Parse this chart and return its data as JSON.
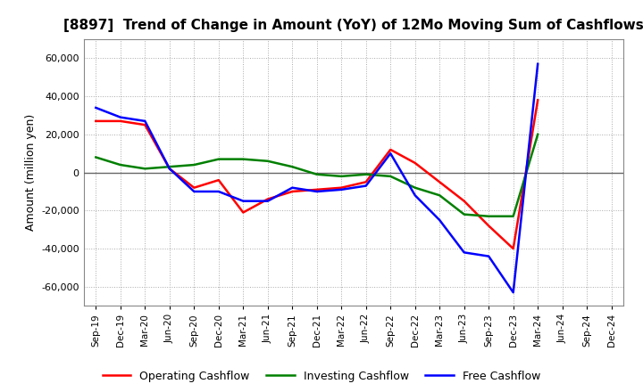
{
  "title": "[8897]  Trend of Change in Amount (YoY) of 12Mo Moving Sum of Cashflows",
  "ylabel": "Amount (million yen)",
  "x_labels": [
    "Sep-19",
    "Dec-19",
    "Mar-20",
    "Jun-20",
    "Sep-20",
    "Dec-20",
    "Mar-21",
    "Jun-21",
    "Sep-21",
    "Dec-21",
    "Mar-22",
    "Jun-22",
    "Sep-22",
    "Dec-22",
    "Mar-23",
    "Jun-23",
    "Sep-23",
    "Dec-23",
    "Mar-24",
    "Jun-24",
    "Sep-24",
    "Dec-24"
  ],
  "operating_cashflow": [
    27000,
    27000,
    25000,
    2000,
    -8000,
    -4000,
    -21000,
    -14000,
    -10000,
    -9000,
    -8000,
    -5000,
    12000,
    5000,
    -5000,
    -15000,
    -28000,
    -40000,
    38000,
    null,
    null,
    null
  ],
  "investing_cashflow": [
    8000,
    4000,
    2000,
    3000,
    4000,
    7000,
    7000,
    6000,
    3000,
    -1000,
    -2000,
    -1000,
    -2000,
    -8000,
    -12000,
    -22000,
    -23000,
    -23000,
    20000,
    null,
    null,
    null
  ],
  "free_cashflow": [
    34000,
    29000,
    27000,
    2000,
    -10000,
    -10000,
    -15000,
    -15000,
    -8000,
    -10000,
    -9000,
    -7000,
    10000,
    -12000,
    -25000,
    -42000,
    -44000,
    -63000,
    57000,
    null,
    null,
    null
  ],
  "operating_color": "#ff0000",
  "investing_color": "#008000",
  "free_color": "#0000ff",
  "ylim": [
    -70000,
    70000
  ],
  "yticks": [
    -60000,
    -40000,
    -20000,
    0,
    20000,
    40000,
    60000
  ],
  "bg_color": "#ffffff",
  "plot_bg_color": "#ffffff",
  "grid_color": "#aaaaaa",
  "zero_line_color": "#666666",
  "legend_labels": [
    "Operating Cashflow",
    "Investing Cashflow",
    "Free Cashflow"
  ]
}
